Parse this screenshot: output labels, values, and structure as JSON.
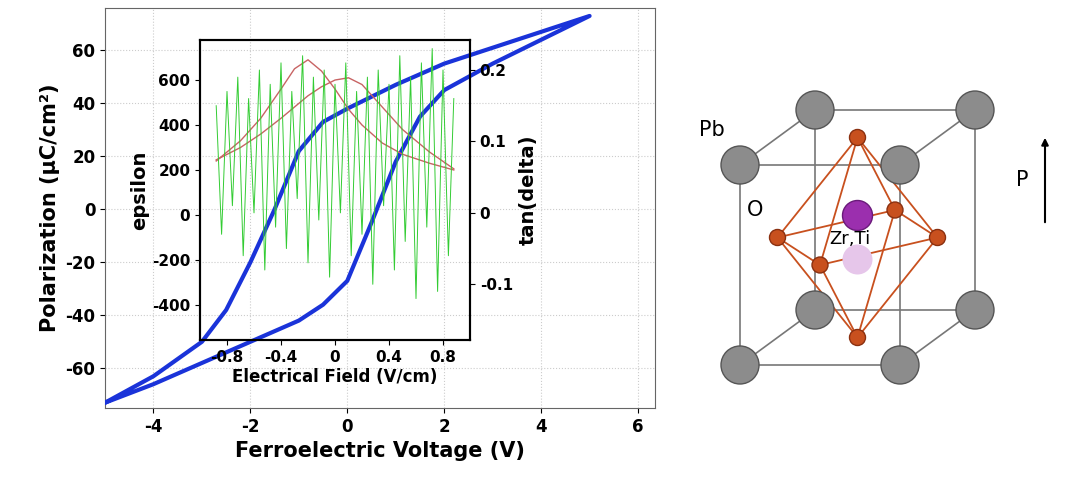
{
  "chart_data": [
    {
      "type": "line",
      "x_label": "Ferroelectric Voltage (V)",
      "y_label": "Polarization (μC/cm²)",
      "xlim": [
        -5,
        6.35
      ],
      "xticks": [
        -4,
        -2,
        0,
        2,
        4,
        6
      ],
      "ylim": [
        -75,
        76
      ],
      "yticks": [
        -60,
        -40,
        -20,
        0,
        20,
        40,
        60
      ],
      "grid": true,
      "series": [
        {
          "color": "#1a33d9",
          "x": [
            -5,
            -4,
            -3,
            -2,
            -1,
            -0.5,
            0,
            0.5,
            1,
            1.5,
            2,
            3,
            4,
            5,
            4,
            3,
            2,
            1,
            0,
            -0.5,
            -1,
            -1.5,
            -2,
            -2.5,
            -3,
            -4,
            -5
          ],
          "values": [
            -73,
            -66,
            -58,
            -50,
            -42,
            -36,
            -27,
            -5,
            18,
            35,
            45,
            55,
            64,
            73,
            67,
            61,
            55,
            47,
            38,
            33,
            22,
            0,
            -20,
            -38,
            -50,
            -63,
            -73
          ]
        }
      ]
    },
    {
      "type": "line",
      "x_label": "Electrical Field (V/cm)",
      "y_label": "epsilon",
      "y2_label": "tan(delta)",
      "xlim": [
        -1.0,
        1.0
      ],
      "xticks": [
        -0.8,
        -0.4,
        0,
        0.4,
        0.8
      ],
      "ylim": [
        -556,
        778
      ],
      "yticks": [
        -400,
        -200,
        0,
        200,
        400,
        600
      ],
      "y2lim": [
        -0.178,
        0.242
      ],
      "y2ticks": [
        -0.1,
        0,
        0.1,
        0.2
      ],
      "grid": false,
      "series": [
        {
          "color": "#33cc33",
          "axis": "y2",
          "x": [
            -0.88,
            -0.84,
            -0.8,
            -0.76,
            -0.72,
            -0.68,
            -0.64,
            -0.6,
            -0.56,
            -0.52,
            -0.48,
            -0.44,
            -0.4,
            -0.36,
            -0.32,
            -0.28,
            -0.24,
            -0.2,
            -0.16,
            -0.12,
            -0.08,
            -0.04,
            0,
            0.04,
            0.08,
            0.12,
            0.16,
            0.2,
            0.24,
            0.28,
            0.32,
            0.36,
            0.4,
            0.44,
            0.48,
            0.52,
            0.56,
            0.6,
            0.64,
            0.68,
            0.72,
            0.76,
            0.8,
            0.84,
            0.88
          ],
          "values": [
            0.15,
            -0.03,
            0.17,
            0.01,
            0.19,
            -0.06,
            0.16,
            0.0,
            0.2,
            -0.08,
            0.18,
            -0.02,
            0.21,
            -0.05,
            0.17,
            0.02,
            0.22,
            -0.07,
            0.19,
            -0.01,
            0.2,
            -0.09,
            0.18,
            0.0,
            0.21,
            -0.06,
            0.17,
            -0.03,
            0.19,
            -0.1,
            0.2,
            0.01,
            0.18,
            -0.08,
            0.22,
            -0.04,
            0.19,
            -0.12,
            0.21,
            -0.02,
            0.23,
            -0.11,
            0.2,
            -0.06,
            0.16
          ]
        },
        {
          "color": "#c86464",
          "axis": "y",
          "x": [
            -0.88,
            -0.7,
            -0.55,
            -0.4,
            -0.3,
            -0.2,
            -0.1,
            0,
            0.1,
            0.2,
            0.35,
            0.5,
            0.7,
            0.88
          ],
          "values": [
            240,
            330,
            430,
            560,
            650,
            690,
            640,
            560,
            470,
            400,
            320,
            270,
            230,
            200
          ]
        },
        {
          "color": "#c86464",
          "axis": "y",
          "x": [
            -0.88,
            -0.7,
            -0.55,
            -0.4,
            -0.3,
            -0.2,
            -0.1,
            0,
            0.1,
            0.2,
            0.35,
            0.5,
            0.7,
            0.88
          ],
          "values": [
            245,
            300,
            360,
            430,
            480,
            530,
            570,
            600,
            610,
            580,
            480,
            380,
            280,
            205
          ]
        }
      ]
    }
  ],
  "diagram": {
    "atoms": [
      "Pb",
      "O",
      "Zr,Ti"
    ],
    "polarization_label": "P"
  }
}
